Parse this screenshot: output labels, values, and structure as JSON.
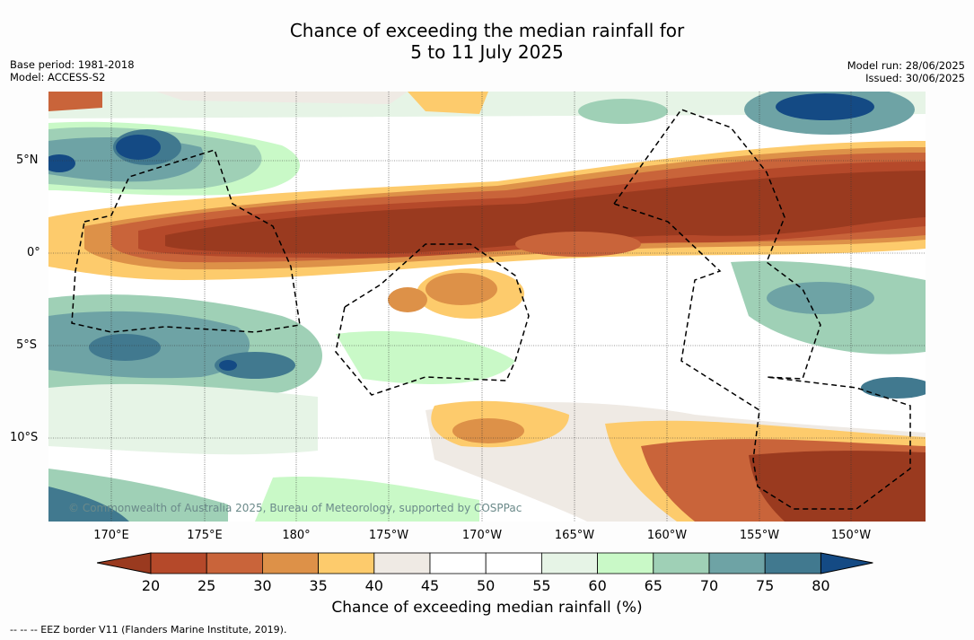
{
  "title": {
    "line1": "Chance of exceeding the median rainfall for",
    "line2": "5 to 11 July 2025"
  },
  "meta_left": {
    "base_period": "Base period: 1981-2018",
    "model": "Model: ACCESS-S2"
  },
  "meta_right": {
    "model_run": "Model run: 28/06/2025",
    "issued": "Issued: 30/06/2025"
  },
  "map": {
    "lat_labels": [
      "5°N",
      "0°",
      "5°S",
      "10°S"
    ],
    "lon_labels": [
      "170°E",
      "175°E",
      "180°",
      "175°W",
      "170°W",
      "165°W",
      "160°W",
      "155°W",
      "150°W"
    ],
    "copyright": "© Commonwealth of Australia 2025, Bureau of Meteorology, supported by COSPPac"
  },
  "colorbar": {
    "ticks": [
      "20",
      "25",
      "30",
      "35",
      "40",
      "45",
      "50",
      "55",
      "60",
      "65",
      "70",
      "75",
      "80"
    ],
    "colors": [
      "#9a3a1f",
      "#b5492a",
      "#c9643a",
      "#dd9148",
      "#fdcb6c",
      "#efeae4",
      "#ffffff",
      "#ffffff",
      "#e6f4e6",
      "#c9f9c7",
      "#9fd0b6",
      "#6ea3a5",
      "#41798f",
      "#144a84"
    ],
    "label": "Chance of exceeding median rainfall (%)"
  },
  "footer": "--  --  -- EEZ border V11 (Flanders Marine Institute, 2019)."
}
